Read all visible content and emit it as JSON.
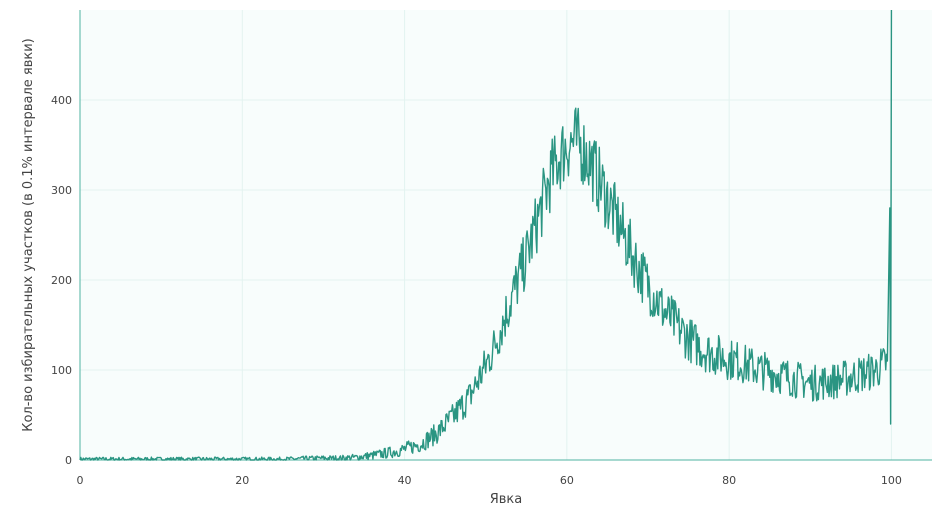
{
  "chart_data": {
    "type": "line",
    "title": "",
    "xlabel": "Явка",
    "ylabel": "Кол-во избирательных участков (в 0.1% интервале явки)",
    "xlim": [
      0,
      105
    ],
    "ylim": [
      0,
      500
    ],
    "x_ticks": [
      0,
      20,
      40,
      60,
      80,
      100
    ],
    "y_ticks": [
      0,
      100,
      200,
      300,
      400
    ],
    "grid": true,
    "colors": {
      "line": "#2a9582",
      "plot_background": "#f8fdfc",
      "grid": "#e3f3f0",
      "axis": "#4fb3a2"
    },
    "series": [
      {
        "x": [
          0,
          5,
          10,
          15,
          20,
          25,
          30,
          32,
          34,
          36,
          38,
          40,
          42,
          44,
          46,
          48,
          50,
          51,
          52,
          53,
          54,
          55,
          56,
          57,
          58,
          59,
          60,
          61,
          62,
          63,
          64,
          65,
          66,
          67,
          68,
          69,
          70,
          71,
          72,
          73,
          74,
          75,
          76,
          77,
          78,
          79,
          80,
          81,
          82,
          83,
          84,
          85,
          86,
          87,
          88,
          89,
          90,
          91,
          92,
          93,
          94,
          95,
          96,
          97,
          98,
          99,
          99.5,
          99.8,
          99.9,
          100
        ],
        "y": [
          1,
          1,
          1,
          1,
          1,
          1,
          2,
          2,
          3,
          5,
          8,
          12,
          18,
          30,
          48,
          70,
          105,
          125,
          150,
          175,
          200,
          225,
          255,
          285,
          315,
          335,
          350,
          355,
          345,
          330,
          310,
          290,
          270,
          250,
          230,
          210,
          195,
          180,
          165,
          155,
          145,
          135,
          128,
          122,
          118,
          115,
          112,
          110,
          106,
          103,
          100,
          98,
          95,
          93,
          90,
          88,
          85,
          86,
          87,
          88,
          90,
          92,
          95,
          97,
          100,
          105,
          110,
          280,
          40,
          500
        ]
      }
    ]
  }
}
